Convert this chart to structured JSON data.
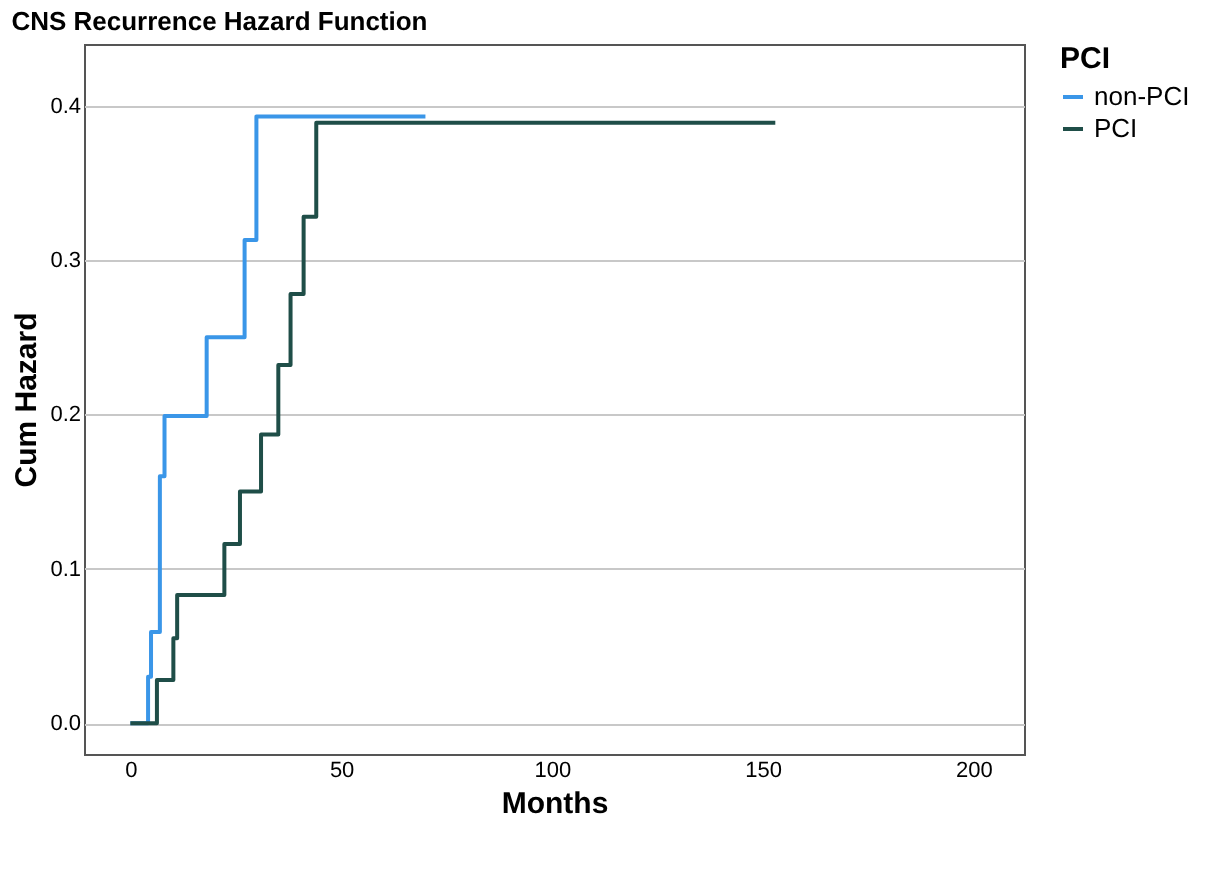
{
  "chart_data": {
    "type": "step",
    "title": "CNS Recurrence Hazard Function",
    "xlabel": "Months",
    "ylabel": "Cum Hazard",
    "legend_title": "PCI",
    "series": [
      {
        "name": "non-PCI",
        "color": "#3a96e8",
        "x": [
          0,
          4.2,
          4.9,
          7.0,
          8.1,
          18.1,
          27.1,
          29.9,
          70
        ],
        "values": [
          0,
          0.03,
          0.059,
          0.16,
          0.199,
          0.25,
          0.313,
          0.393,
          0.393
        ]
      },
      {
        "name": "PCI",
        "color": "#1f4e48",
        "x": [
          0,
          6.3,
          10.2,
          11.1,
          22.3,
          26.0,
          31.0,
          35.1,
          38.0,
          41.1,
          44.1,
          153
        ],
        "values": [
          0,
          0.028,
          0.055,
          0.083,
          0.116,
          0.15,
          0.187,
          0.232,
          0.278,
          0.328,
          0.389,
          0.389
        ]
      }
    ],
    "xlim": [
      -11,
      212
    ],
    "xticks": [
      0,
      50,
      100,
      150,
      200
    ],
    "ylim": [
      -0.02,
      0.44
    ],
    "yticks": [
      {
        "value": 0,
        "label": "0.0"
      },
      {
        "value": 0.1,
        "label": "0.1"
      },
      {
        "value": 0.2,
        "label": "0.2"
      },
      {
        "value": 0.3,
        "label": "0.3"
      },
      {
        "value": 0.4,
        "label": "0.4"
      }
    ],
    "grid": "y",
    "legend": "top right",
    "marker": "none",
    "line_style": "solid"
  }
}
